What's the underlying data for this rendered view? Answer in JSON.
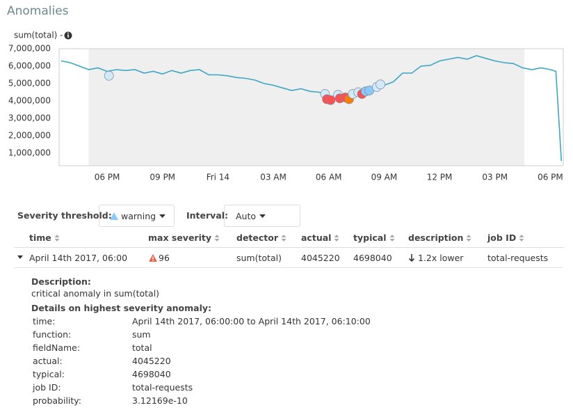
{
  "header": {
    "title": "Anomalies"
  },
  "chart_data": {
    "type": "line",
    "y_label": "sum(total) -",
    "x": [
      15.5,
      16,
      16.5,
      17,
      17.5,
      18,
      18.5,
      19,
      19.5,
      20,
      20.5,
      21,
      21.5,
      22,
      22.5,
      23,
      23.5,
      24,
      24.5,
      25,
      25.5,
      26,
      26.5,
      27,
      27.5,
      28,
      28.5,
      29,
      29.5,
      30,
      30.5,
      31,
      31.5,
      32,
      32.5,
      33,
      33.5,
      34,
      34.5,
      35,
      35.5,
      36,
      36.5,
      37,
      37.5,
      38,
      38.5,
      39,
      39.5,
      40,
      40.5,
      41,
      41.5,
      42,
      42.3,
      42.6
    ],
    "series": [
      {
        "color": "#3aa7c3",
        "values": [
          6300000,
          6200000,
          6000000,
          5800000,
          5900000,
          5700000,
          5800000,
          5750000,
          5800000,
          5600000,
          5700000,
          5550000,
          5750000,
          5600000,
          5750000,
          5800000,
          5500000,
          5500000,
          5450000,
          5350000,
          5300000,
          5200000,
          5000000,
          4900000,
          4750000,
          4600000,
          4700000,
          4550000,
          4500000,
          4100000,
          4150000,
          4200000,
          4300000,
          4500000,
          4600000,
          4900000,
          5100000,
          5600000,
          5600000,
          6000000,
          6050000,
          6300000,
          6400000,
          6500000,
          6400000,
          6600000,
          6450000,
          6300000,
          6200000,
          6150000,
          5900000,
          5800000,
          5900000,
          5800000,
          5700000,
          550000
        ]
      }
    ],
    "anomalies": {
      "x": [
        18.1,
        29.8,
        29.9,
        30.1,
        30.5,
        30.6,
        30.9,
        31.1,
        31.3,
        31.6,
        31.8,
        32.0,
        32.2,
        32.6,
        32.8
      ],
      "values": [
        5450000,
        4400000,
        4100000,
        4050000,
        4350000,
        4150000,
        4200000,
        4100000,
        4400000,
        4500000,
        4400000,
        4550000,
        4600000,
        4800000,
        4950000
      ],
      "colors": [
        "#d2e9f7",
        "#d2e9f7",
        "#fe5050",
        "#fe5050",
        "#d2e9f7",
        "#fe5050",
        "#fe5050",
        "#ff7e00",
        "#d2e9f7",
        "#d2e9f7",
        "#fe5050",
        "#8bc8fb",
        "#8bc8fb",
        "#d2e9f7",
        "#d2e9f7"
      ]
    },
    "xlim": [
      15.4,
      42.7
    ],
    "ylim": [
      280000,
      7000000
    ],
    "selection_xlim": [
      17,
      40.6
    ],
    "xticks": [
      {
        "value": 18,
        "label": "06 PM"
      },
      {
        "value": 21,
        "label": "09 PM"
      },
      {
        "value": 24,
        "label": "Fri 14"
      },
      {
        "value": 27,
        "label": "03 AM"
      },
      {
        "value": 30,
        "label": "06 AM"
      },
      {
        "value": 33,
        "label": "09 AM"
      },
      {
        "value": 36,
        "label": "12 PM"
      },
      {
        "value": 39,
        "label": "03 PM"
      },
      {
        "value": 42,
        "label": "06 PM"
      }
    ],
    "yticks": [
      {
        "value": 1000000,
        "label": "1,000,000"
      },
      {
        "value": 2000000,
        "label": "2,000,000"
      },
      {
        "value": 3000000,
        "label": "3,000,000"
      },
      {
        "value": 4000000,
        "label": "4,000,000"
      },
      {
        "value": 5000000,
        "label": "5,000,000"
      },
      {
        "value": 6000000,
        "label": "6,000,000"
      },
      {
        "value": 7000000,
        "label": "7,000,000"
      }
    ]
  },
  "controls": {
    "severity_label": "Severity threshold:",
    "severity_value": "warning",
    "interval_label": "Interval:",
    "interval_value": "Auto"
  },
  "table": {
    "columns": [
      "time",
      "max severity",
      "detector",
      "actual",
      "typical",
      "description",
      "job ID"
    ],
    "rows": [
      [
        "April 14th 2017, 06:00",
        "96",
        "sum(total)",
        "4045220",
        "4698040",
        "1.2x lower",
        "total-requests"
      ]
    ]
  },
  "details": {
    "description_label": "Description:",
    "description": "critical anomaly in sum(total)",
    "heading": "Details on highest severity anomaly:",
    "fields": [
      [
        "time:",
        "April 14th 2017, 06:00:00 to April 14th 2017, 06:10:00"
      ],
      [
        "function:",
        "sum"
      ],
      [
        "fieldName:",
        "total"
      ],
      [
        "actual:",
        "4045220"
      ],
      [
        "typical:",
        "4698040"
      ],
      [
        "job ID:",
        "total-requests"
      ],
      [
        "probability:",
        "3.12169e-10"
      ]
    ]
  }
}
